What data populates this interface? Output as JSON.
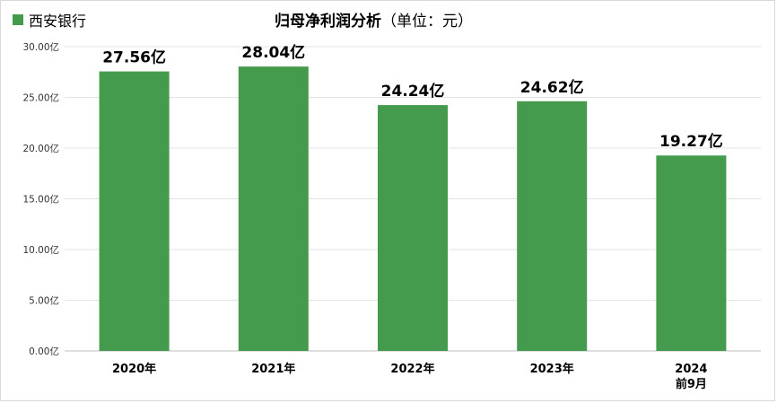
{
  "chart_data": {
    "type": "bar",
    "title": "归母净利润分析",
    "title_unit": "（单位：元）",
    "series": [
      {
        "name": "西安银行",
        "color": "#449a4d",
        "values": [
          27.56,
          28.04,
          24.24,
          24.62,
          19.27
        ],
        "labels": [
          "27.56亿",
          "28.04亿",
          "24.24亿",
          "24.62亿",
          "19.27亿"
        ]
      }
    ],
    "categories": [
      [
        "2020年"
      ],
      [
        "2021年"
      ],
      [
        "2022年"
      ],
      [
        "2023年"
      ],
      [
        "2024",
        "前9月"
      ]
    ],
    "yticks": [
      {
        "value": 0,
        "label": "0.00亿"
      },
      {
        "value": 5,
        "label": "5.00亿"
      },
      {
        "value": 10,
        "label": "10.00亿"
      },
      {
        "value": 15,
        "label": "15.00亿"
      },
      {
        "value": 20,
        "label": "20.00亿"
      },
      {
        "value": 25,
        "label": "25.00亿"
      },
      {
        "value": 30,
        "label": "30.00亿"
      }
    ],
    "ylim": [
      0,
      30
    ],
    "grid": true,
    "legend_position": "top-left"
  }
}
